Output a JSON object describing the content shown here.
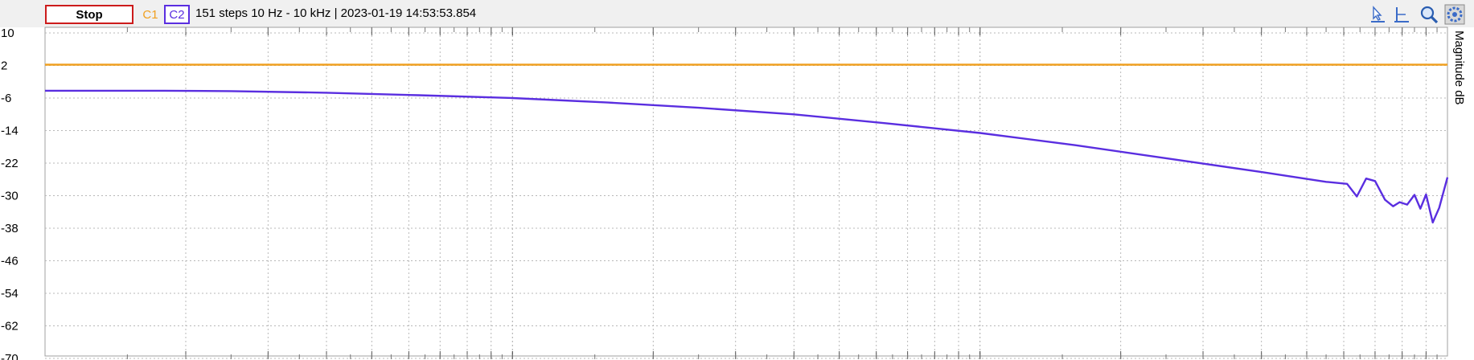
{
  "toolbar": {
    "stop_label": "Stop",
    "channel1_label": "C1",
    "channel2_label": "C2",
    "sweep_info": "151 steps  10 Hz - 10 kHz | 2023-01-19 14:53:53.854",
    "icons": [
      "cursor-icon",
      "marker-icon",
      "zoom-icon",
      "settings-icon"
    ]
  },
  "colors": {
    "c1": "#f0a020",
    "c2": "#5a2ee0",
    "stop_border": "#cc1b1b",
    "grid": "#b8b8b8"
  },
  "chart_data": {
    "type": "line",
    "y_axis_label": "Magnitude  dB",
    "y_ticks": [
      10,
      2,
      -6,
      -14,
      -22,
      -30,
      -38,
      -46,
      -54,
      -62,
      -70
    ],
    "ylim": [
      -70,
      10
    ],
    "xscale": "log",
    "xlim": [
      10,
      10000
    ],
    "grid": true,
    "series": [
      {
        "name": "C1",
        "color": "#f0a020",
        "x": [
          10,
          10000
        ],
        "y": [
          2.2,
          2.2
        ]
      },
      {
        "name": "C2",
        "color": "#5a2ee0",
        "x": [
          10,
          18,
          25,
          40,
          63,
          100,
          160,
          250,
          400,
          630,
          1000,
          1600,
          2500,
          4000,
          5500,
          6100,
          6400,
          6700,
          7000,
          7350,
          7650,
          7900,
          8200,
          8500,
          8750,
          9000,
          9300,
          9600,
          10000
        ],
        "y": [
          -4.2,
          -4.2,
          -4.3,
          -4.7,
          -5.3,
          -6.0,
          -7.1,
          -8.4,
          -10.0,
          -12.2,
          -14.6,
          -17.6,
          -20.8,
          -24.2,
          -26.6,
          -27.1,
          -30.2,
          -25.8,
          -26.4,
          -31.0,
          -32.6,
          -31.6,
          -32.2,
          -29.8,
          -33.2,
          -29.7,
          -36.6,
          -33.0,
          -25.5
        ]
      }
    ]
  }
}
